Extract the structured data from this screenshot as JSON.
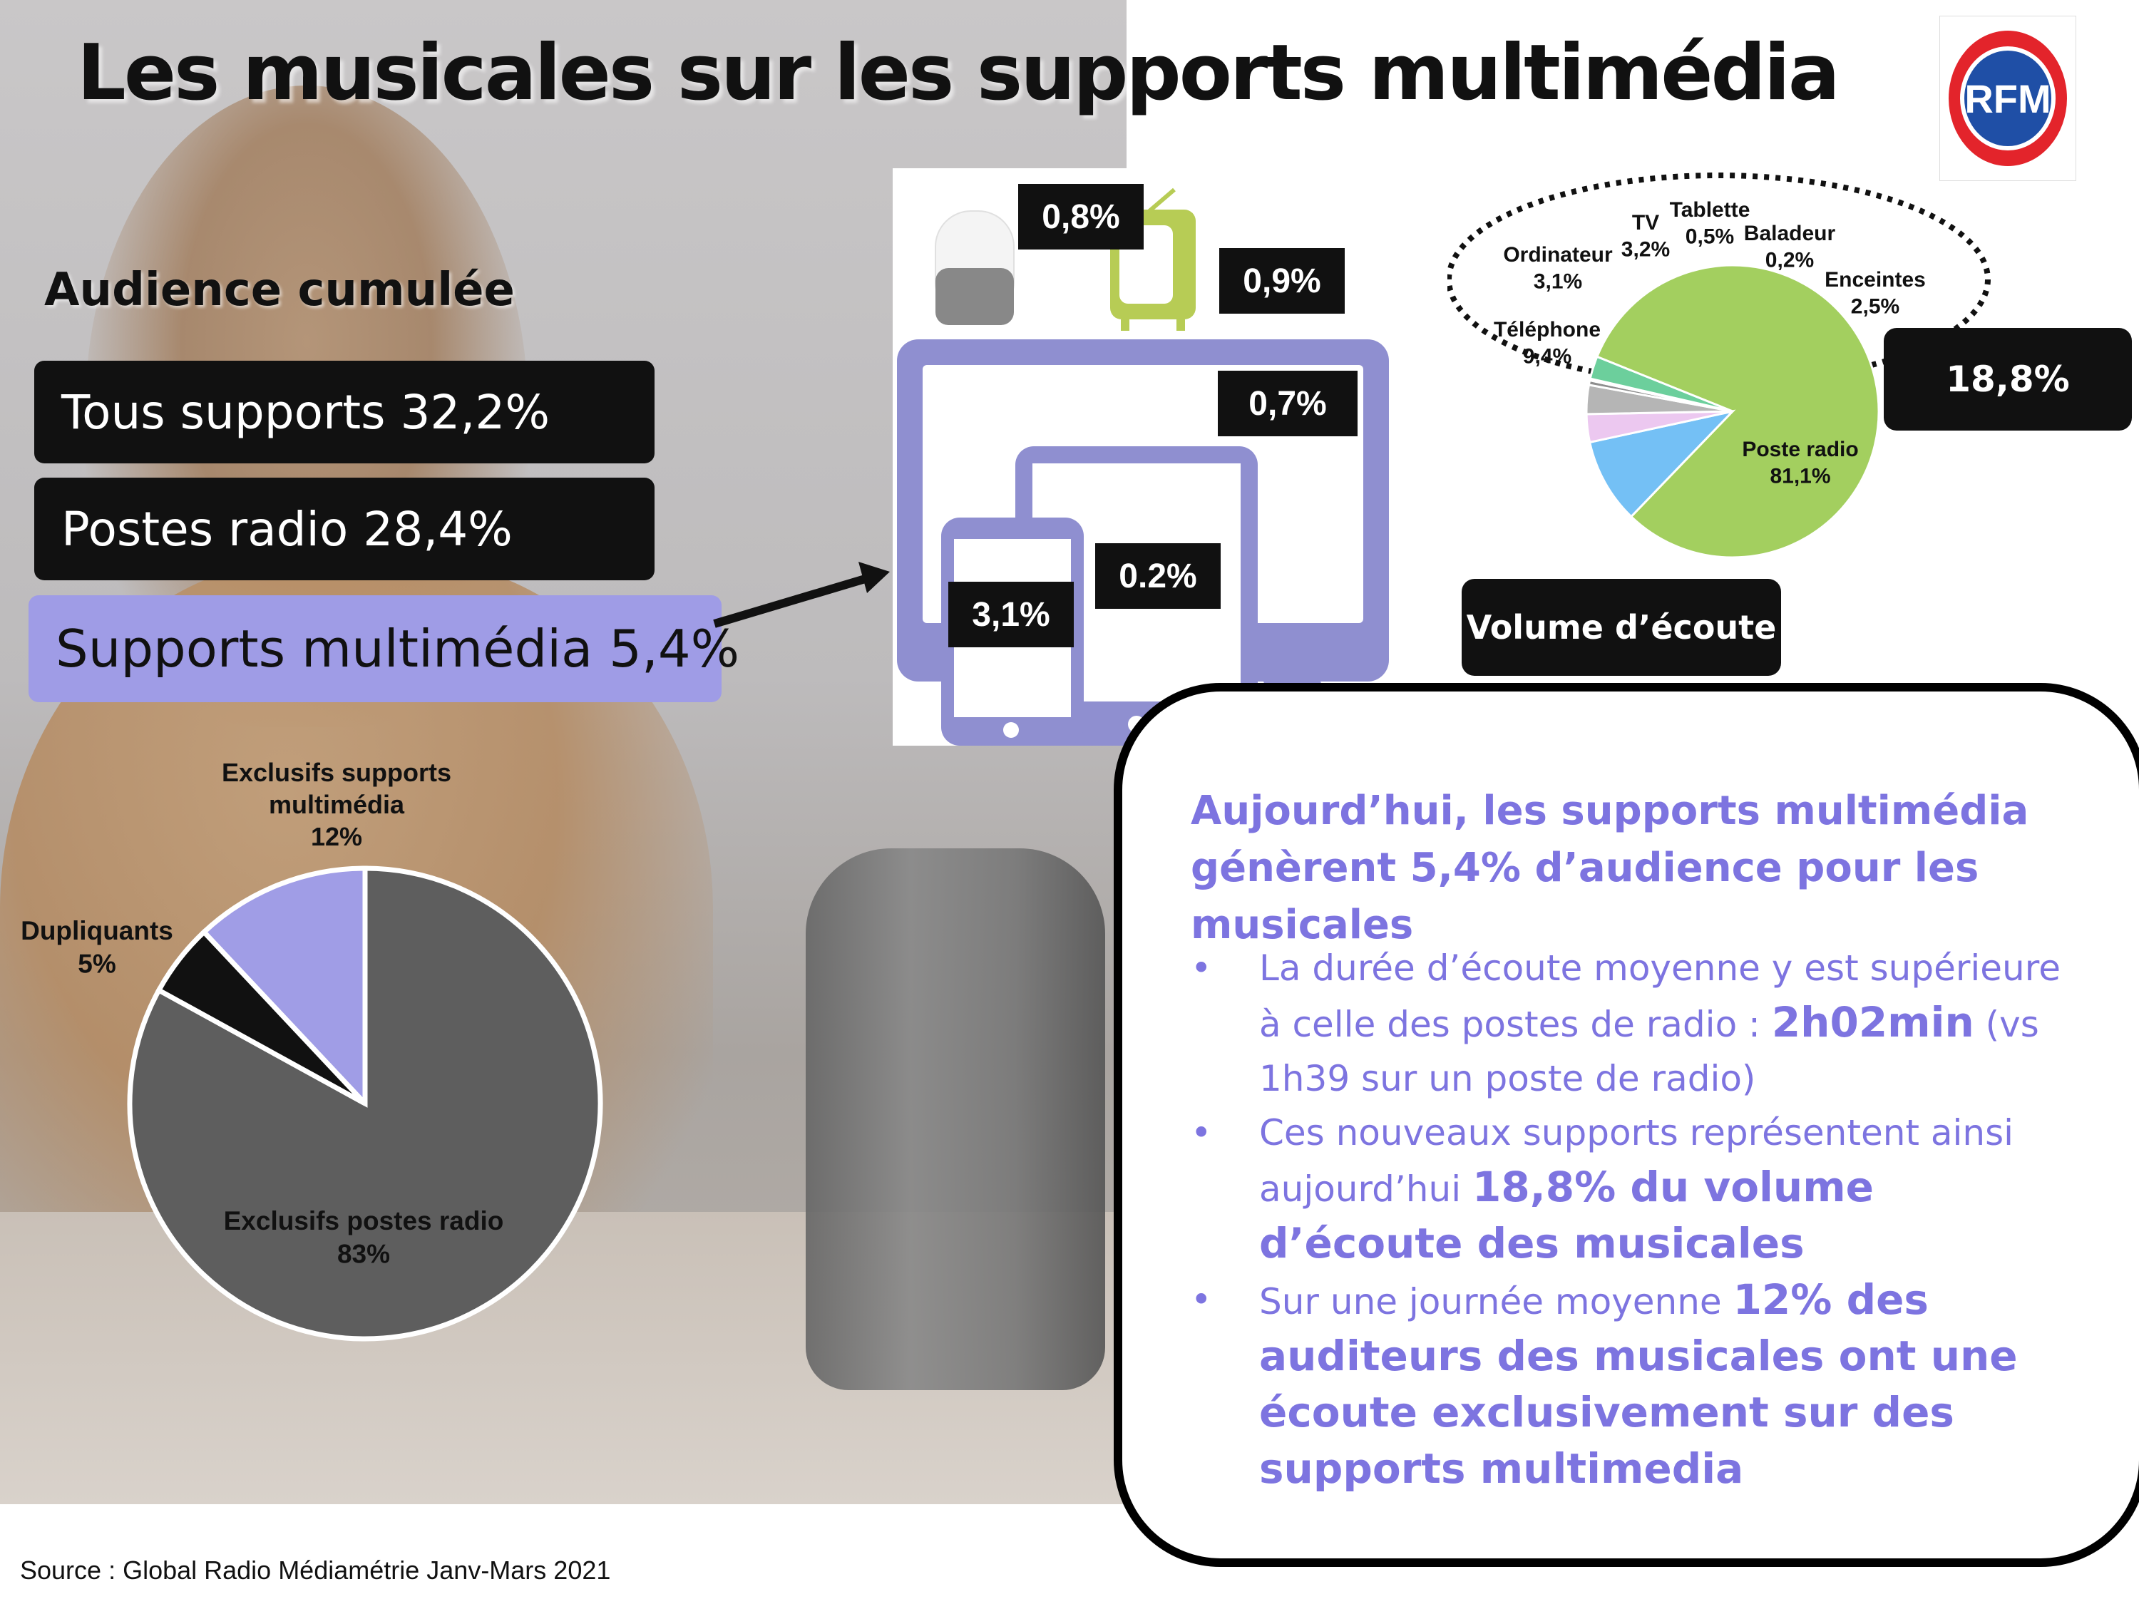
{
  "title": "Les musicales sur les supports multimédia",
  "logo": {
    "text": "RFM"
  },
  "audience": {
    "heading": "Audience cumulée",
    "items": [
      {
        "label": "Tous supports 32,2%"
      },
      {
        "label": "Postes radio 28,4%"
      },
      {
        "label": "Supports multimédia 5,4%"
      }
    ]
  },
  "devices": {
    "smart_speaker": "0,8%",
    "tv": "0,9%",
    "computer": "0,7%",
    "tablet": "0.2%",
    "phone": "3,1%"
  },
  "volume": {
    "total": "18,8%",
    "title": "Volume d’écoute"
  },
  "callout": {
    "heading": "Aujourd’hui, les supports multimédia génèrent 5,4% d’audience pour les musicales",
    "bullets": [
      {
        "a": "La durée d’écoute moyenne y est supérieure à celle des postes de radio : ",
        "b": "2h02min",
        "c": " (vs 1h39 sur un poste de radio)"
      },
      {
        "a": "Ces nouveaux supports représentent ainsi aujourd’hui ",
        "b": "18,8% du volume d’écoute des musicales",
        "c": ""
      },
      {
        "a": "Sur une journée moyenne ",
        "b": "12% des auditeurs des musicales ont une écoute exclusivement sur des supports multimedia",
        "c": ""
      }
    ]
  },
  "source": "Source : Global Radio Médiamétrie Janv-Mars 2021",
  "chart_data": [
    {
      "type": "pie",
      "slices": [
        {
          "label": "Exclusifs supports multimédia",
          "value": 12,
          "value_label": "12%",
          "color": "#a09de6"
        },
        {
          "label": "Exclusifs postes radio",
          "value": 83,
          "value_label": "83%",
          "color": "#5e5e5e"
        },
        {
          "label": "Dupliquants",
          "value": 5,
          "value_label": "5%",
          "color": "#111111"
        }
      ]
    },
    {
      "type": "pie",
      "slices": [
        {
          "label": "Poste radio",
          "value": 81.1,
          "value_label": "81,1%",
          "color": "#a3cf5f"
        },
        {
          "label": "Téléphone",
          "value": 9.4,
          "value_label": "9,4%",
          "color": "#74c0f5"
        },
        {
          "label": "Ordinateur",
          "value": 3.1,
          "value_label": "3,1%",
          "color": "#ecc8f0"
        },
        {
          "label": "TV",
          "value": 3.2,
          "value_label": "3,2%",
          "color": "#b5b5b5"
        },
        {
          "label": "Tablette",
          "value": 0.5,
          "value_label": "0,5%",
          "color": "#8e8e8e"
        },
        {
          "label": "Baladeur",
          "value": 0.2,
          "value_label": "0,2%",
          "color": "#3c3c3c"
        },
        {
          "label": "Enceintes",
          "value": 2.5,
          "value_label": "2,5%",
          "color": "#6ccf9c"
        }
      ]
    }
  ]
}
